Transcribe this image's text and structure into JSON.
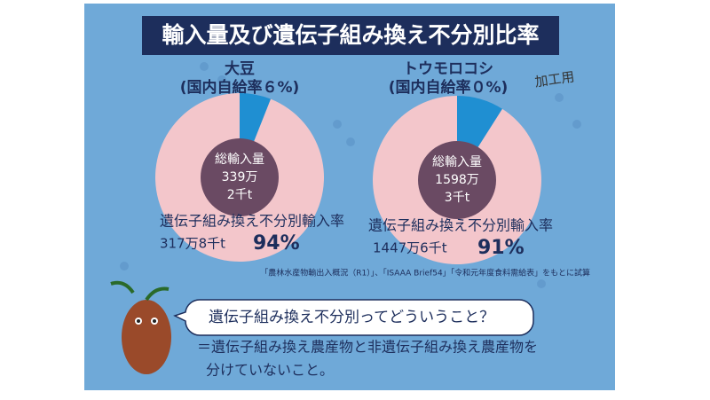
{
  "title": "輸入量及び遺伝子組み換え不分別比率",
  "chart_data": [
    {
      "type": "pie",
      "title": "大豆",
      "subtitle": "(国内自給率６%)",
      "center_label": [
        "総輸入量",
        "339万",
        "2千t"
      ],
      "categories": [
        "遺伝子組み換え不分別輸入率",
        null
      ],
      "values": [
        94,
        6
      ],
      "value_labels": [
        "94%",
        null
      ],
      "amount_label": "317万8千t",
      "colors": [
        "#f3c6cb",
        "#1f8fd2"
      ]
    },
    {
      "type": "pie",
      "title": "トウモロコシ",
      "subtitle": "(国内自給率０%)",
      "annotation": "加工用",
      "center_label": [
        "総輸入量",
        "1598万",
        "3千t"
      ],
      "categories": [
        "遺伝子組み換え不分別輸入率",
        null
      ],
      "values": [
        91,
        9
      ],
      "value_labels": [
        "91%",
        null
      ],
      "amount_label": "1447万6千t",
      "colors": [
        "#f3c6cb",
        "#1f8fd2"
      ]
    }
  ],
  "source": "「農林水産物輸出入概況（R1）」、「ISAAA Brief54」「令和元年度食料需給表」をもとに試算",
  "question": "遺伝子組み換え不分別ってどういうこと？",
  "answer": [
    "＝遺伝子組み換え農産物と非遺伝子組み換え農産物を",
    "分けていないこと。"
  ]
}
